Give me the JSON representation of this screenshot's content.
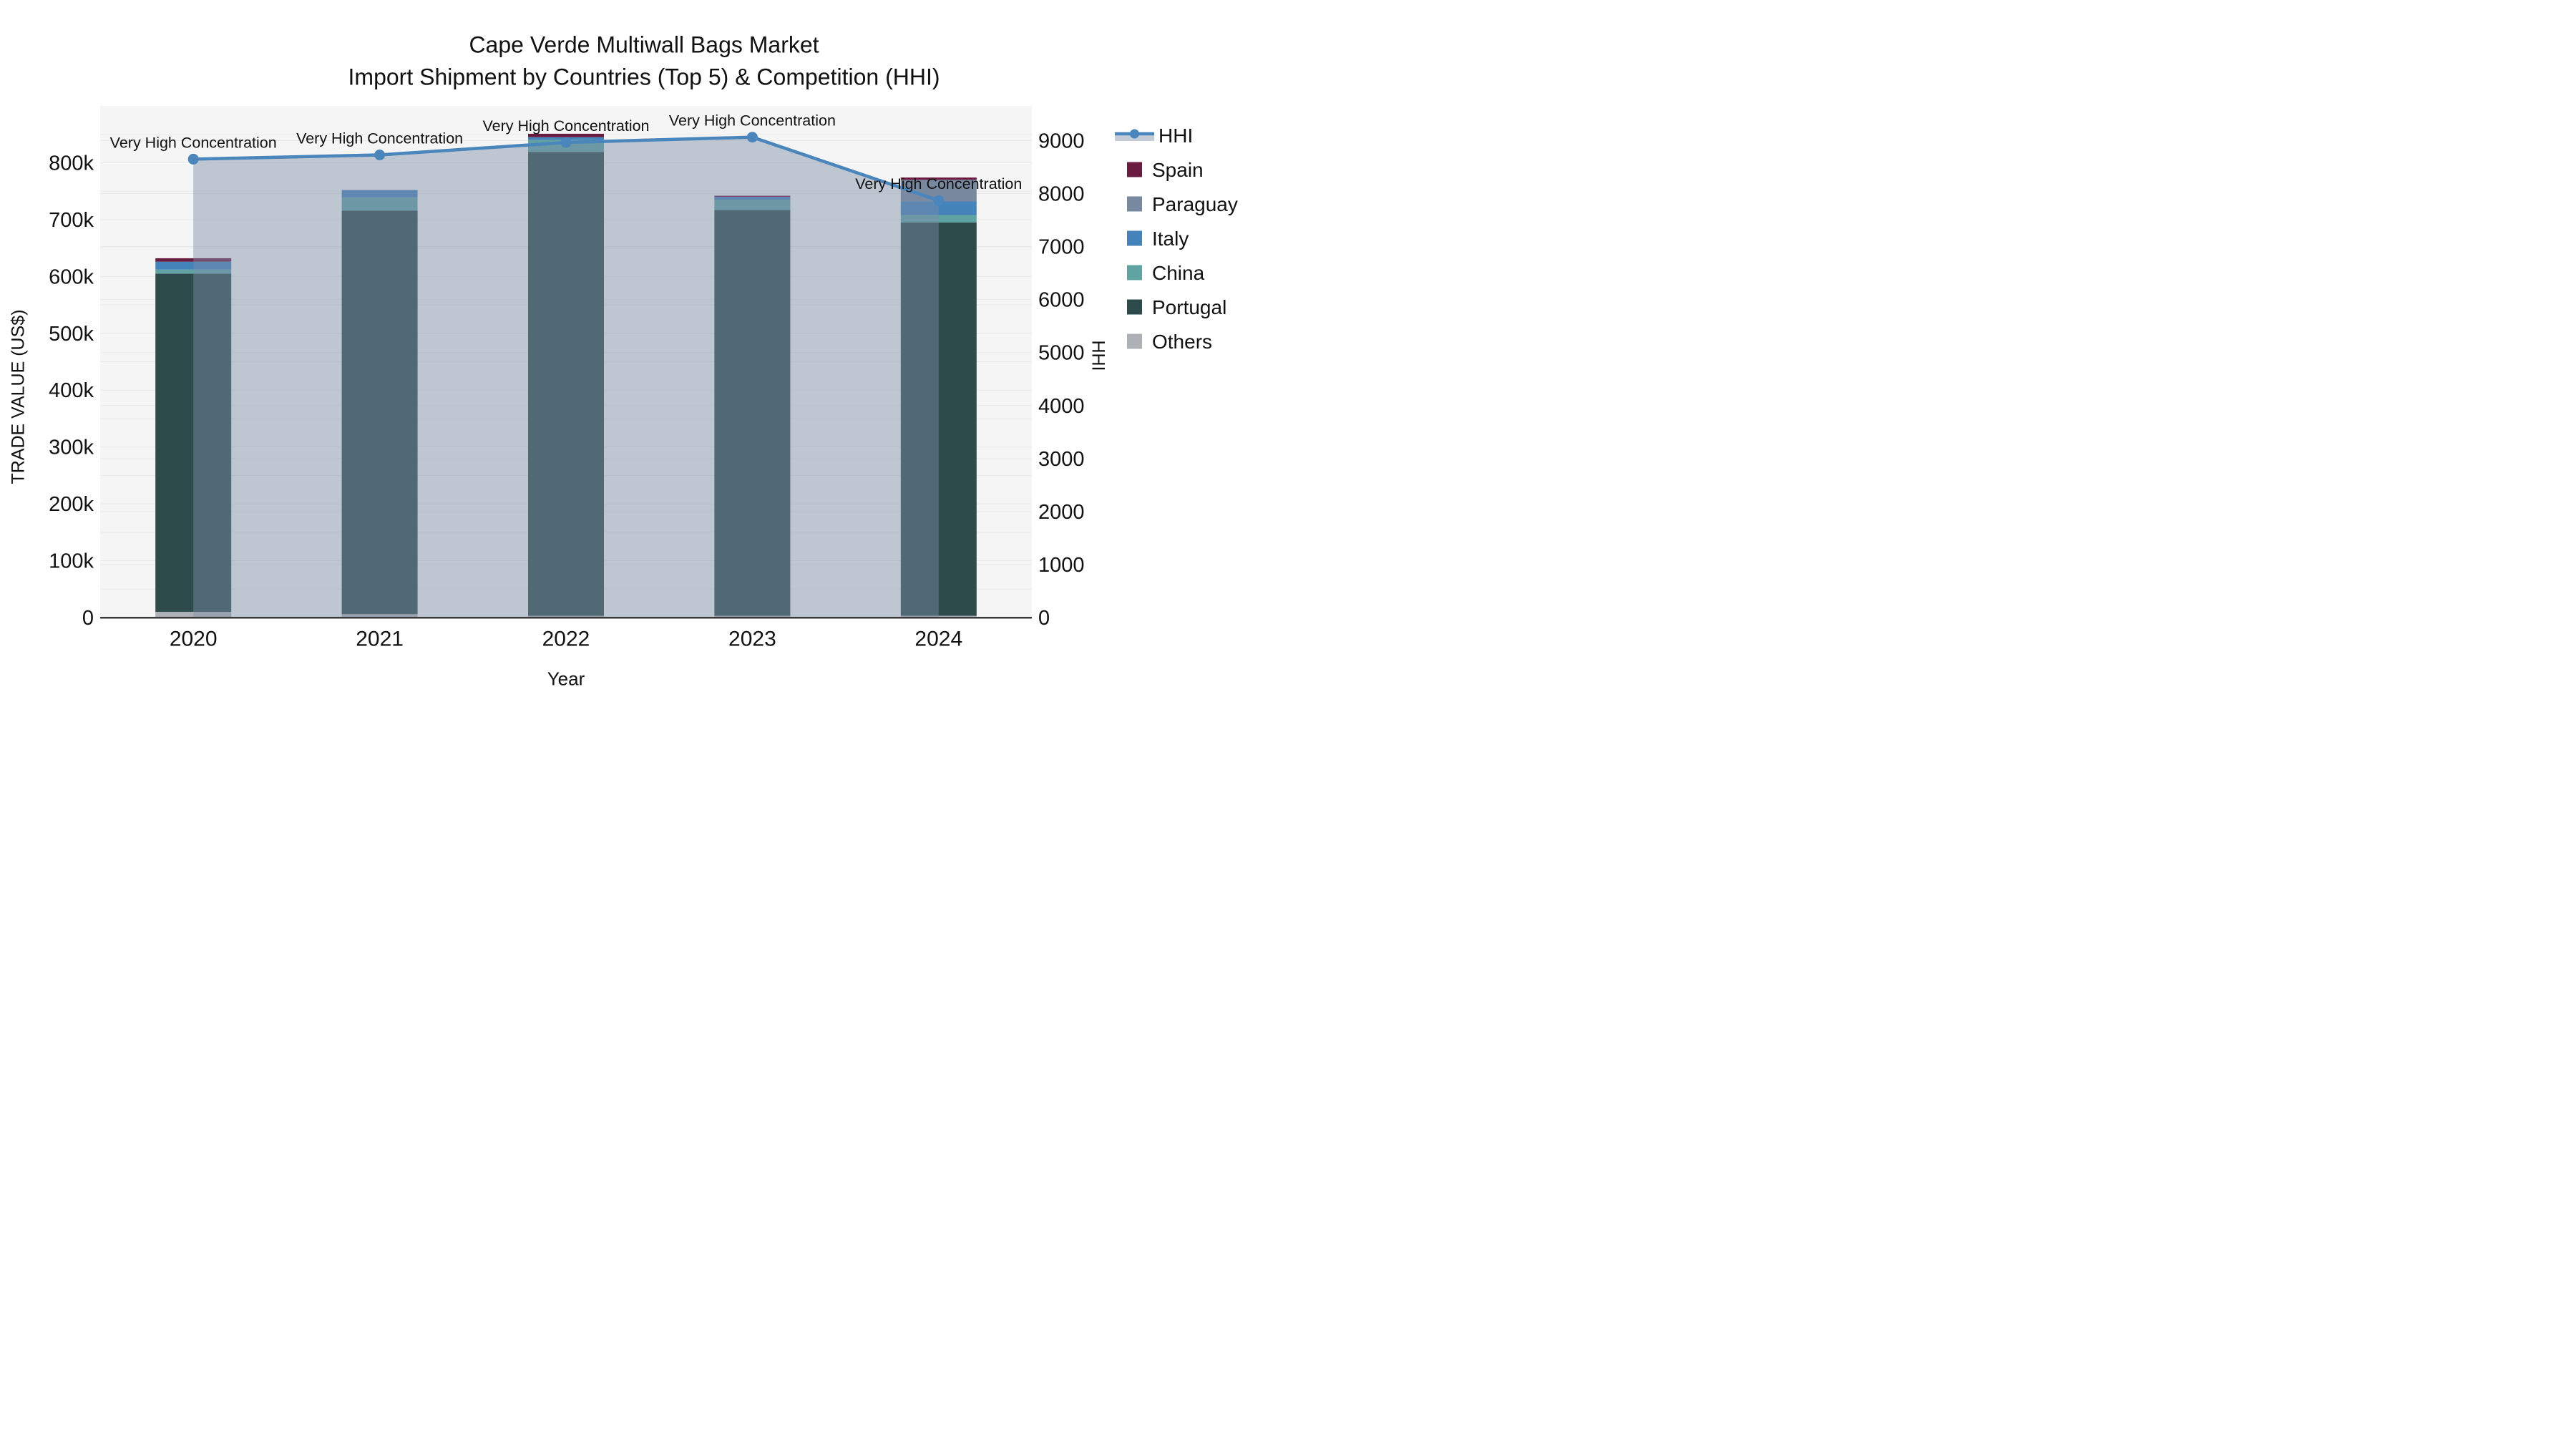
{
  "title": {
    "line1": "Cape Verde Multiwall Bags Market",
    "line2": "Import Shipment by Countries (Top 5) & Competition (HHI)"
  },
  "axes": {
    "y_left_label": "TRADE VALUE (US$)",
    "y_right_label": "HHI",
    "x_label": "Year",
    "y_left_ticks": [
      "0",
      "100k",
      "200k",
      "300k",
      "400k",
      "500k",
      "600k",
      "700k",
      "800k"
    ],
    "y_left_tick_values": [
      0,
      100000,
      200000,
      300000,
      400000,
      500000,
      600000,
      700000,
      800000
    ],
    "y_right_ticks": [
      "0",
      "1000",
      "2000",
      "3000",
      "4000",
      "5000",
      "6000",
      "7000",
      "8000",
      "9000"
    ],
    "y_right_tick_values": [
      0,
      1000,
      2000,
      3000,
      4000,
      5000,
      6000,
      7000,
      8000,
      9000
    ]
  },
  "annotation_text": "Very High Concentration",
  "legend": {
    "items": [
      {
        "label": "HHI",
        "type": "line",
        "color": "#4a86bb"
      },
      {
        "label": "Spain",
        "type": "box",
        "color": "#6a1c40"
      },
      {
        "label": "Paraguay",
        "type": "box",
        "color": "#78889e"
      },
      {
        "label": "Italy",
        "type": "box",
        "color": "#4583bb"
      },
      {
        "label": "China",
        "type": "box",
        "color": "#60a3a3"
      },
      {
        "label": "Portugal",
        "type": "box",
        "color": "#2e4b4c"
      },
      {
        "label": "Others",
        "type": "box",
        "color": "#adb1b5"
      }
    ]
  },
  "colors": {
    "plot_bg": "#f5f5f5",
    "grid": "#e9e9e9",
    "axis_line": "#3a3a3a",
    "hhi_line": "#4a86bb",
    "hhi_area_fill": "#7d8fa8",
    "hhi_area_opacity": 0.45,
    "annotation_text": "#111111"
  },
  "chart_data": {
    "type": "bar",
    "subtype": "stacked-bars-with-line-overlay",
    "categories": [
      "2020",
      "2021",
      "2022",
      "2023",
      "2024"
    ],
    "stack_order_bottom_to_top": [
      "Others",
      "Portugal",
      "China",
      "Italy",
      "Paraguay",
      "Spain"
    ],
    "series": [
      {
        "name": "Others",
        "color": "#adb1b5",
        "values": [
          10000,
          6000,
          3000,
          3000,
          3000
        ]
      },
      {
        "name": "Portugal",
        "color": "#2e4b4c",
        "values": [
          595000,
          710000,
          816000,
          714000,
          692000
        ]
      },
      {
        "name": "China",
        "color": "#60a3a3",
        "values": [
          7000,
          23000,
          21000,
          18000,
          13000
        ]
      },
      {
        "name": "Italy",
        "color": "#4583bb",
        "values": [
          14000,
          13000,
          5000,
          5000,
          24000
        ]
      },
      {
        "name": "Paraguay",
        "color": "#78889e",
        "values": [
          0,
          0,
          0,
          0,
          38000
        ]
      },
      {
        "name": "Spain",
        "color": "#6a1c40",
        "values": [
          6000,
          0,
          6000,
          2000,
          4000
        ]
      }
    ],
    "bar_totals": [
      632000,
      752000,
      851000,
      742000,
      774000
    ],
    "line_series": {
      "name": "HHI",
      "values": [
        8650,
        8730,
        8965,
        9065,
        7870
      ],
      "axis": "right",
      "point_annotations": [
        "Very High Concentration",
        "Very High Concentration",
        "Very High Concentration",
        "Very High Concentration",
        "Very High Concentration"
      ]
    },
    "title": "Cape Verde Multiwall Bags Market — Import Shipment by Countries (Top 5) & Competition (HHI)",
    "xlabel": "Year",
    "ylabel": "TRADE VALUE (US$)",
    "y2label": "HHI",
    "ylim": [
      0,
      900000
    ],
    "y2lim": [
      0,
      9655
    ],
    "grid": true,
    "legend_position": "right"
  }
}
